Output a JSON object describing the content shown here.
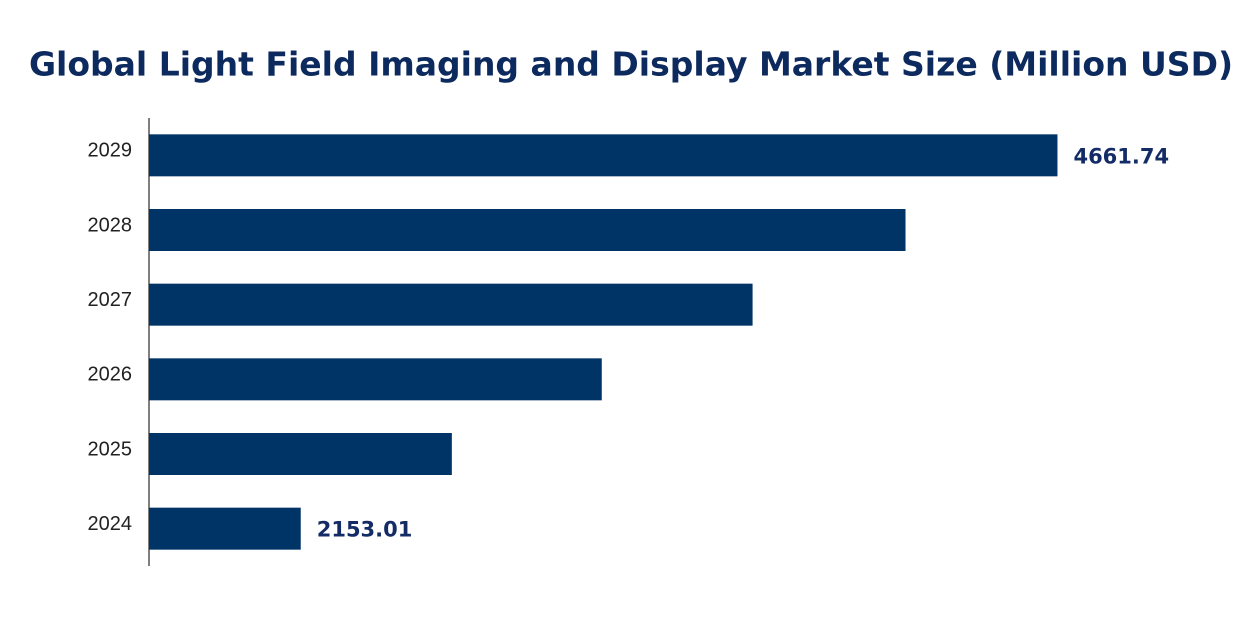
{
  "chart_data": {
    "type": "bar",
    "orientation": "horizontal",
    "title": "Global Light Field Imaging and Display Market Size (Million USD)",
    "categories": [
      "2024",
      "2025",
      "2026",
      "2027",
      "2028",
      "2029"
    ],
    "values": [
      2153.01,
      2654,
      3151,
      3651,
      4158,
      4661.74
    ],
    "value_labels": [
      "2153.01",
      null,
      null,
      null,
      null,
      "4661.74"
    ],
    "color": "#003366",
    "xlim": [
      1650,
      4700
    ]
  }
}
